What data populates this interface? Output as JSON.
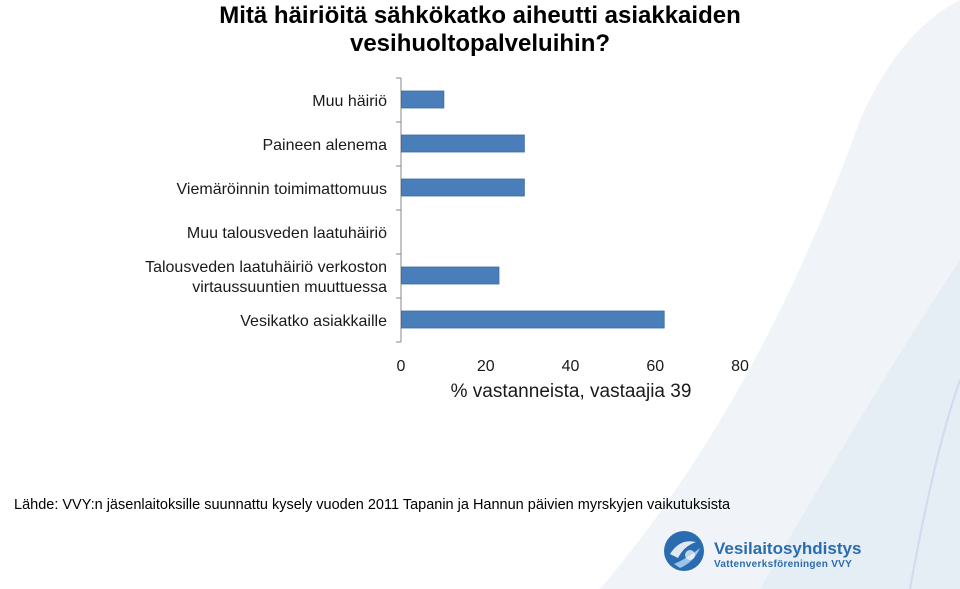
{
  "title_line1": "Mitä häiriöitä sähkökatko aiheutti asiakkaiden",
  "title_line2": "vesihuoltopalveluihin?",
  "chart_data": {
    "type": "bar",
    "orientation": "horizontal",
    "categories": [
      [
        "Muu häiriö"
      ],
      [
        "Paineen alenema"
      ],
      [
        "Viemäröinnin toimimattomuus"
      ],
      [
        "Muu talousveden laatuhäiriö"
      ],
      [
        "Talousveden laatuhäiriö verkoston",
        "virtaussuuntien muuttuessa"
      ],
      [
        "Vesikatko asiakkaille"
      ]
    ],
    "values": [
      10,
      29,
      29,
      0,
      23,
      62
    ],
    "xlim": [
      0,
      80
    ],
    "xticks": [
      "0",
      "20",
      "40",
      "60",
      "80"
    ],
    "xlabel": "% vastanneista, vastaajia 39",
    "ylabel": "",
    "bar_color": "#4a7ebb",
    "grid": false
  },
  "source": "Lähde: VVY:n jäsenlaitoksille suunnattu kysely vuoden 2011 Tapanin ja Hannun päivien myrskyjen vaikutuksista",
  "logo": {
    "name": "Vesilaitosyhdistys",
    "sub": "Vattenverksföreningen VVY",
    "color": "#2b6cb0"
  }
}
